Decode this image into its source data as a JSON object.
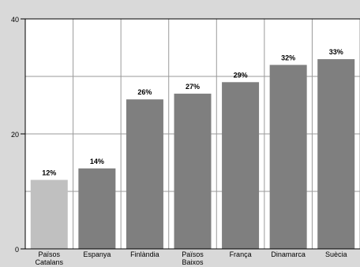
{
  "chart_data": {
    "type": "bar",
    "categories": [
      "Països Catalans",
      "Espanya",
      "Finlàndia",
      "Països Baixos",
      "França",
      "Dinamarca",
      "Suècia"
    ],
    "category_lines": [
      [
        "Països",
        "Catalans"
      ],
      [
        "Espanya"
      ],
      [
        "Finlàndia"
      ],
      [
        "Països",
        "Baixos"
      ],
      [
        "França"
      ],
      [
        "Dinamarca"
      ],
      [
        "Suècia"
      ]
    ],
    "values": [
      12,
      14,
      26,
      27,
      29,
      32,
      33
    ],
    "value_labels": [
      "12%",
      "14%",
      "26%",
      "27%",
      "29%",
      "32%",
      "33%"
    ],
    "bar_colors": [
      "#c0c0c0",
      "#7f7f7f",
      "#7f7f7f",
      "#7f7f7f",
      "#7f7f7f",
      "#7f7f7f",
      "#7f7f7f"
    ],
    "yticks": [
      0,
      20,
      40
    ],
    "ytick_labels": [
      "0",
      "20",
      "40"
    ],
    "ylim": [
      0,
      40
    ],
    "grid": true,
    "title": "",
    "xlabel": "",
    "ylabel": ""
  }
}
